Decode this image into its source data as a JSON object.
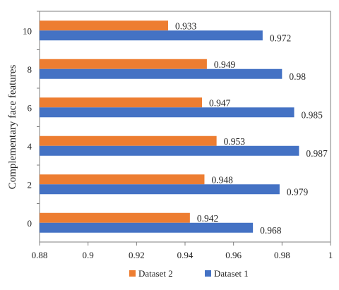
{
  "chart_data": {
    "type": "bar",
    "orientation": "horizontal",
    "categories": [
      "0",
      "2",
      "4",
      "6",
      "8",
      "10"
    ],
    "series": [
      {
        "name": "Dataset 1",
        "color": "#4472C4",
        "values": [
          0.968,
          0.979,
          0.987,
          0.985,
          0.98,
          0.972
        ],
        "labels": [
          "0.968",
          "0.979",
          "0.987",
          "0.985",
          "0.98",
          "0.972"
        ]
      },
      {
        "name": "Dataset 2",
        "color": "#ED7D31",
        "values": [
          0.942,
          0.948,
          0.953,
          0.947,
          0.949,
          0.933
        ],
        "labels": [
          "0.942",
          "0.948",
          "0.953",
          "0.947",
          "0.949",
          "0.933"
        ]
      }
    ],
    "xlim": [
      0.88,
      1.0
    ],
    "xticks": [
      "0.88",
      "0.9",
      "0.92",
      "0.94",
      "0.96",
      "0.98",
      "1"
    ],
    "ylabel": "Complementary face features",
    "xlabel": "",
    "title": "",
    "legend": {
      "position": "bottom",
      "entries": [
        {
          "name": "Dataset 2",
          "color": "#ED7D31"
        },
        {
          "name": "Dataset 1",
          "color": "#4472C4"
        }
      ]
    },
    "grid": false
  }
}
